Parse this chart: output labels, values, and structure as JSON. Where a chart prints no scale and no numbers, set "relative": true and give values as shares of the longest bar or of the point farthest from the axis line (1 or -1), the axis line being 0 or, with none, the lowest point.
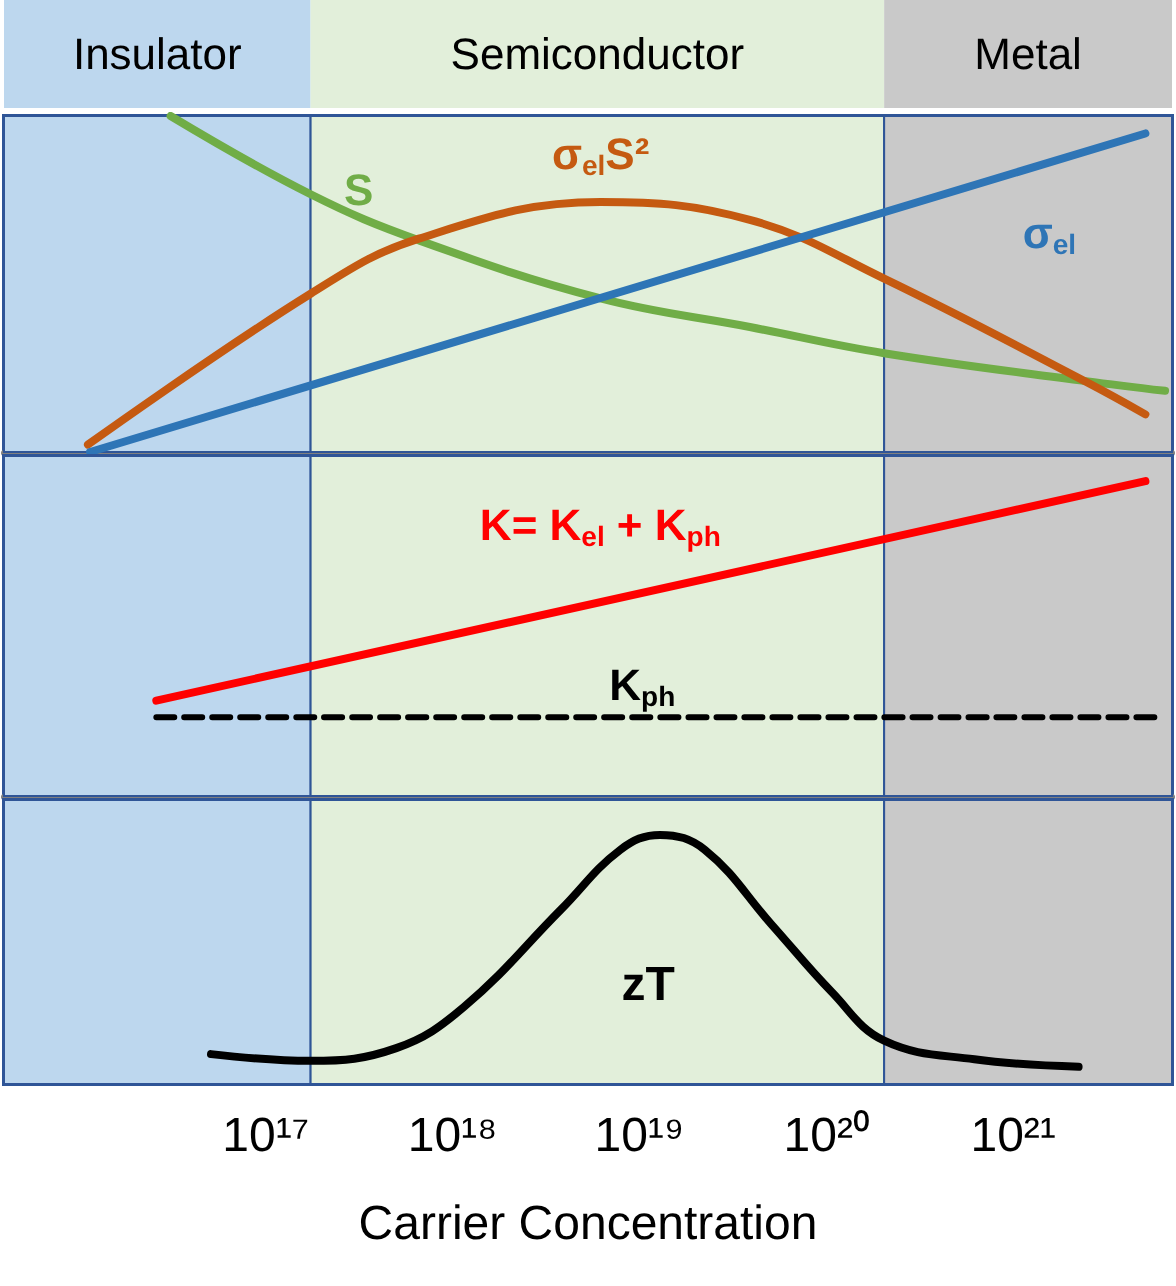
{
  "chart_data": [
    {
      "type": "line",
      "relative": true,
      "tick_labels": false,
      "log": "x",
      "xlim": [
        3980000000000000.0,
        7.08e+21
      ],
      "bands": [
        {
          "axis": "x",
          "from": 3980000000000000.0,
          "to": 1.74e+17,
          "label": "Insulator",
          "color": "#bdd7ee"
        },
        {
          "axis": "x",
          "from": 1.74e+17,
          "to": 2.04e+20,
          "label": "Semiconductor",
          "color": "#e2efda"
        },
        {
          "axis": "x",
          "from": 2.04e+20,
          "to": 7.08e+21,
          "label": "Metal",
          "color": "#c9c9c9"
        }
      ],
      "series": [
        {
          "name": "S",
          "color": "#70ad47",
          "x": [
            3.1e+16,
            1.74e+17,
            6.6e+17,
            6.2e+18,
            3.9e+19,
            2.04e+20,
            2.45e+21,
            6.5e+21
          ],
          "values": [
            1.0,
            0.767,
            0.63,
            0.457,
            0.372,
            0.294,
            0.211,
            0.182
          ]
        },
        {
          "name": "σ$_{el}$S²",
          "color": "#c55a11",
          "x": [
            1.12e+16,
            1.74e+17,
            6.6e+17,
            6.2e+18,
            3.9e+19,
            2.04e+20,
            2.45e+21,
            5.1e+21
          ],
          "values": [
            0.022,
            0.471,
            0.635,
            0.744,
            0.691,
            0.516,
            0.209,
            0.112
          ]
        },
        {
          "name": "σ$_{el}$",
          "color": "#2e75b6",
          "x": [
            1.15e+16,
            5.1e+21
          ],
          "values": [
            0,
            0.948
          ]
        }
      ]
    },
    {
      "type": "line",
      "relative": true,
      "tick_labels": false,
      "log": "x",
      "xlim": [
        3980000000000000.0,
        7.08e+21
      ],
      "bands": [
        {
          "axis": "x",
          "from": 3980000000000000.0,
          "to": 1.74e+17,
          "color": "#bdd7ee"
        },
        {
          "axis": "x",
          "from": 1.74e+17,
          "to": 2.04e+20,
          "color": "#e2efda"
        },
        {
          "axis": "x",
          "from": 2.04e+20,
          "to": 7.08e+21,
          "color": "#c9c9c9"
        }
      ],
      "series": [
        {
          "name": "K= K$_{el}$ + K$_{ph}$",
          "color": "#ff0000",
          "x": [
            2.6e+16,
            5.1e+21
          ],
          "values": [
            0.303,
            1.0
          ]
        },
        {
          "name": "K$_{ph}$",
          "color": "#000000",
          "line_style": "dashed",
          "x": [
            2.6e+16,
            5.75e+21
          ],
          "values": [
            0.25,
            0.25
          ]
        }
      ]
    },
    {
      "type": "line",
      "relative": true,
      "tick_labels": "x",
      "log": "x",
      "xlim": [
        3980000000000000.0,
        7.08e+21
      ],
      "xlabel": "Carrier Concentration",
      "xticks": [
        {
          "value": 1e+17,
          "label": "10¹⁷"
        },
        {
          "value": 1e+18,
          "label": "10¹⁸"
        },
        {
          "value": 1e+19,
          "label": "10¹⁹"
        },
        {
          "value": 1e+20,
          "label": "10²⁰"
        },
        {
          "value": 1e+21,
          "label": "10²¹"
        }
      ],
      "bands": [
        {
          "axis": "x",
          "from": 3980000000000000.0,
          "to": 1.74e+17,
          "color": "#bdd7ee"
        },
        {
          "axis": "x",
          "from": 1.74e+17,
          "to": 2.04e+20,
          "color": "#e2efda"
        },
        {
          "axis": "x",
          "from": 2.04e+20,
          "to": 7.08e+21,
          "color": "#c9c9c9"
        }
      ],
      "series": [
        {
          "name": "zT",
          "color": "#000000",
          "x": [
            5.1e+16,
            1.74e+17,
            5e+17,
            1.15e+18,
            3.8e+18,
            7.9e+18,
            1.29e+19,
            2.24e+19,
            5.1e+19,
            1.07e+20,
            2.04e+20,
            6.2e+20,
            2.24e+21
          ],
          "values": [
            0.12,
            0.093,
            0.144,
            0.309,
            0.7,
            0.94,
            1,
            0.94,
            0.64,
            0.369,
            0.174,
            0.099,
            0.069
          ]
        }
      ]
    }
  ]
}
